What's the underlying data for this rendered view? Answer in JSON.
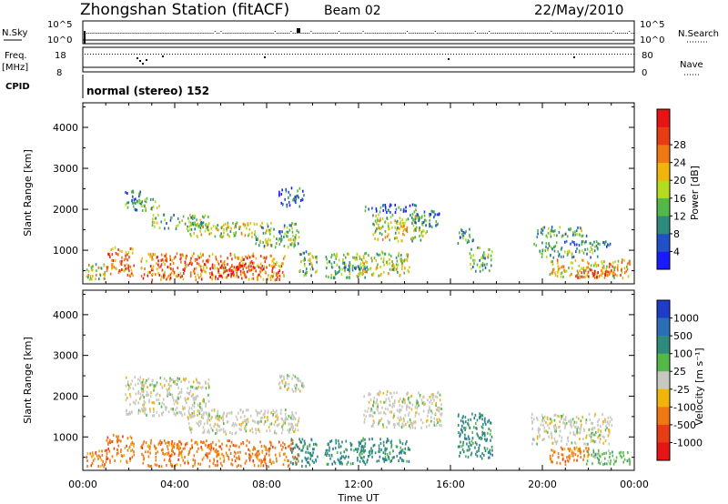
{
  "header": {
    "title": "Zhongshan Station (fitACF)",
    "beam": "Beam 02",
    "date": "22/May/2010"
  },
  "summary_panels": {
    "nsky": {
      "left_label": "N.Sky",
      "left_ticks": [
        "10^5",
        "10^0"
      ],
      "right_label": "N.Search",
      "right_ticks": [
        "10^5",
        "10^0"
      ]
    },
    "freq": {
      "left_label_1": "Freq.",
      "left_label_2": "[MHz]",
      "left_ticks": [
        "18",
        "8"
      ],
      "right_label": "Nave",
      "right_ticks": [
        "80",
        "0"
      ]
    },
    "cpid": {
      "label": "CPID",
      "text": "normal (stereo) 152"
    }
  },
  "chart_data": [
    {
      "type": "heatmap",
      "panel": "power",
      "ylabel": "Slant Range [km]",
      "xlabel": "Time UT",
      "x_ticks": [
        "00:00",
        "04:00",
        "08:00",
        "12:00",
        "16:00",
        "20:00",
        "00:00"
      ],
      "y_ticks": [
        1000,
        2000,
        3000,
        4000
      ],
      "xlim_hours": [
        0,
        24
      ],
      "ylim_km": [
        180,
        4600
      ],
      "colorbar": {
        "label": "Power [dB]",
        "ticks": [
          "4",
          "8",
          "12",
          "16",
          "20",
          "24",
          "28"
        ],
        "colors": [
          "#1a1aff",
          "#2250c8",
          "#2e8a7a",
          "#52b848",
          "#b4dc1e",
          "#f0b40a",
          "#f07814",
          "#e83c14",
          "#e61414"
        ]
      },
      "echo_regions": [
        {
          "t": [
            0.1,
            1.0
          ],
          "r": [
            300,
            700
          ],
          "level": 4
        },
        {
          "t": [
            1.0,
            2.2
          ],
          "r": [
            400,
            1100
          ],
          "level": 6
        },
        {
          "t": [
            1.8,
            2.6
          ],
          "r": [
            2000,
            2500
          ],
          "level": 2
        },
        {
          "t": [
            2.2,
            3.3
          ],
          "r": [
            2000,
            2300
          ],
          "level": 3
        },
        {
          "t": [
            3.0,
            5.5
          ],
          "r": [
            1550,
            1900
          ],
          "level": 3
        },
        {
          "t": [
            4.5,
            7.5
          ],
          "r": [
            1350,
            1700
          ],
          "level": 4
        },
        {
          "t": [
            2.5,
            8.8
          ],
          "r": [
            300,
            950
          ],
          "level": 6
        },
        {
          "t": [
            5.5,
            7.5
          ],
          "r": [
            350,
            700
          ],
          "level": 8
        },
        {
          "t": [
            7.5,
            9.4
          ],
          "r": [
            1100,
            1700
          ],
          "level": 3
        },
        {
          "t": [
            8.5,
            9.6
          ],
          "r": [
            2100,
            2550
          ],
          "level": 1
        },
        {
          "t": [
            9.4,
            10.2
          ],
          "r": [
            400,
            1000
          ],
          "level": 3
        },
        {
          "t": [
            10.5,
            12.3
          ],
          "r": [
            350,
            950
          ],
          "level": 3
        },
        {
          "t": [
            12.2,
            14.5
          ],
          "r": [
            1950,
            2150
          ],
          "level": 1
        },
        {
          "t": [
            12.6,
            15.0
          ],
          "r": [
            1250,
            1900
          ],
          "level": 4
        },
        {
          "t": [
            12.0,
            14.2
          ],
          "r": [
            400,
            1000
          ],
          "level": 4
        },
        {
          "t": [
            14.3,
            15.6
          ],
          "r": [
            1600,
            2000
          ],
          "level": 2
        },
        {
          "t": [
            16.3,
            17.0
          ],
          "r": [
            1200,
            1600
          ],
          "level": 2
        },
        {
          "t": [
            16.8,
            17.8
          ],
          "r": [
            500,
            1100
          ],
          "level": 3
        },
        {
          "t": [
            19.7,
            22.0
          ],
          "r": [
            1350,
            1600
          ],
          "level": 3
        },
        {
          "t": [
            19.5,
            23.0
          ],
          "r": [
            1100,
            1250
          ],
          "level": 2
        },
        {
          "t": [
            19.8,
            22.5
          ],
          "r": [
            850,
            1100
          ],
          "level": 3
        },
        {
          "t": [
            20.3,
            23.8
          ],
          "r": [
            350,
            800
          ],
          "level": 5
        },
        {
          "t": [
            21.5,
            23.0
          ],
          "r": [
            350,
            550
          ],
          "level": 7
        }
      ]
    },
    {
      "type": "heatmap",
      "panel": "velocity",
      "ylabel": "Slant Range [km]",
      "xlabel": "Time UT",
      "x_ticks": [
        "00:00",
        "04:00",
        "08:00",
        "12:00",
        "16:00",
        "20:00",
        "00:00"
      ],
      "y_ticks": [
        1000,
        2000,
        3000,
        4000
      ],
      "xlim_hours": [
        0,
        24
      ],
      "ylim_km": [
        180,
        4600
      ],
      "colorbar": {
        "label": "Velocity [m s⁻¹]",
        "ticks": [
          "1000",
          "500",
          "100",
          "25",
          "-25",
          "-100",
          "-500",
          "-1000"
        ],
        "colors": [
          "#1e3cc8",
          "#2a6eb8",
          "#2e8a7a",
          "#52b848",
          "#c8c8c0",
          "#f0b40a",
          "#f07814",
          "#e83c14",
          "#e61414"
        ]
      },
      "echo_regions": [
        {
          "t": [
            0.1,
            1.0
          ],
          "r": [
            300,
            700
          ],
          "vel": "orange"
        },
        {
          "t": [
            1.0,
            2.2
          ],
          "r": [
            400,
            1100
          ],
          "vel": "orange"
        },
        {
          "t": [
            1.8,
            5.5
          ],
          "r": [
            1550,
            2500
          ],
          "vel": "grey"
        },
        {
          "t": [
            4.5,
            9.4
          ],
          "r": [
            1100,
            1700
          ],
          "vel": "grey"
        },
        {
          "t": [
            2.5,
            9.4
          ],
          "r": [
            300,
            950
          ],
          "vel": "orange"
        },
        {
          "t": [
            8.5,
            9.6
          ],
          "r": [
            2100,
            2550
          ],
          "vel": "grey"
        },
        {
          "t": [
            9.0,
            10.2
          ],
          "r": [
            300,
            1000
          ],
          "vel": "teal"
        },
        {
          "t": [
            10.5,
            12.3
          ],
          "r": [
            350,
            950
          ],
          "vel": "teal"
        },
        {
          "t": [
            12.2,
            15.6
          ],
          "r": [
            1250,
            2150
          ],
          "vel": "grey"
        },
        {
          "t": [
            12.0,
            14.2
          ],
          "r": [
            400,
            1000
          ],
          "vel": "teal"
        },
        {
          "t": [
            16.3,
            17.8
          ],
          "r": [
            500,
            1600
          ],
          "vel": "teal"
        },
        {
          "t": [
            19.5,
            23.0
          ],
          "r": [
            850,
            1600
          ],
          "vel": "grey"
        },
        {
          "t": [
            20.3,
            22.0
          ],
          "r": [
            350,
            800
          ],
          "vel": "orange"
        },
        {
          "t": [
            21.8,
            23.8
          ],
          "r": [
            350,
            700
          ],
          "vel": "green"
        }
      ]
    }
  ]
}
